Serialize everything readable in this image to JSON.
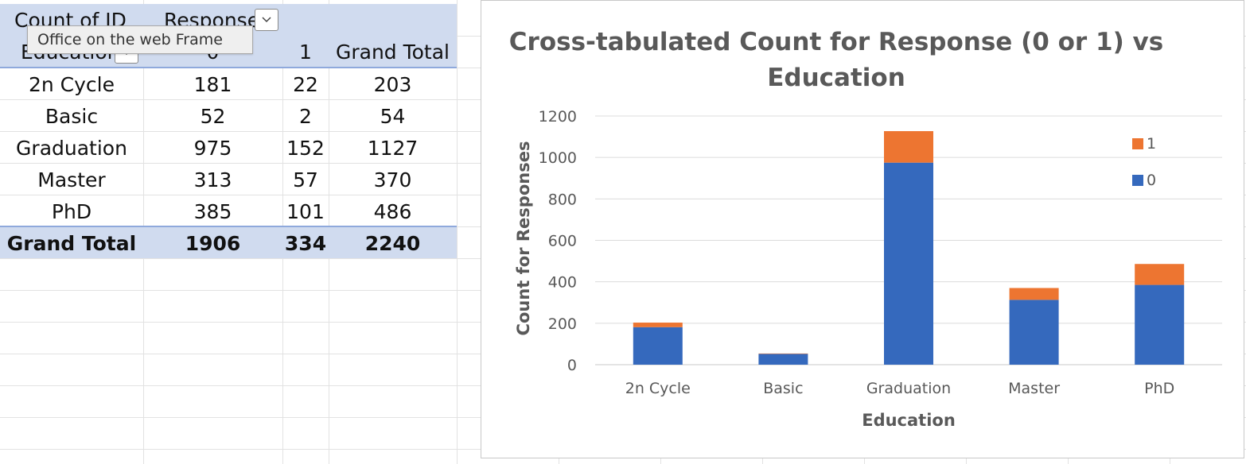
{
  "pivot": {
    "header": {
      "values_label": "Count of ID",
      "columns_label": "Responses",
      "rows_label": "Education",
      "col_0": "0",
      "col_1": "1",
      "col_total": "Grand Total"
    },
    "rows": [
      {
        "label": "2n Cycle",
        "v0": "181",
        "v1": "22",
        "total": "203"
      },
      {
        "label": "Basic",
        "v0": "52",
        "v1": "2",
        "total": "54"
      },
      {
        "label": "Graduation",
        "v0": "975",
        "v1": "152",
        "total": "1127"
      },
      {
        "label": "Master",
        "v0": "313",
        "v1": "57",
        "total": "370"
      },
      {
        "label": "PhD",
        "v0": "385",
        "v1": "101",
        "total": "486"
      }
    ],
    "grand_total": {
      "label": "Grand Total",
      "v0": "1906",
      "v1": "334",
      "total": "2240"
    }
  },
  "tooltip": {
    "text": "Office on the web Frame"
  },
  "colors": {
    "series_0": "#3569bd",
    "series_1": "#ed7531",
    "pivot_band": "#d0dbef"
  },
  "chart_data": {
    "type": "bar",
    "stacked": true,
    "title": "Cross-tabulated Count for Response (0 or 1) vs Education",
    "title_lines": [
      "Cross-tabulated Count for Response (0 or 1) vs",
      "Education"
    ],
    "xlabel": "Education",
    "ylabel": "Count for Responses",
    "categories": [
      "2n Cycle",
      "Basic",
      "Graduation",
      "Master",
      "PhD"
    ],
    "series": [
      {
        "name": "0",
        "values": [
          181,
          52,
          975,
          313,
          385
        ],
        "color": "#3569bd"
      },
      {
        "name": "1",
        "values": [
          22,
          2,
          152,
          57,
          101
        ],
        "color": "#ed7531"
      }
    ],
    "ylim": [
      0,
      1200
    ],
    "yticks": [
      0,
      200,
      400,
      600,
      800,
      1000,
      1200
    ],
    "grid": true,
    "legend": "right"
  }
}
